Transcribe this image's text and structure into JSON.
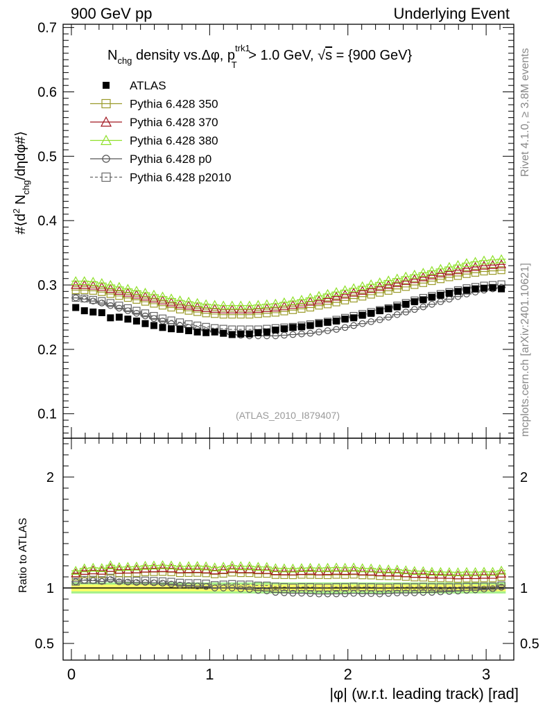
{
  "header": {
    "left": "900 GeV pp",
    "right": "Underlying Event"
  },
  "side_labels": {
    "rivet": "Rivet 4.1.0, ≥ 3.8M events",
    "mcplots": "mcplots.cern.ch [arXiv:2401.10621]"
  },
  "colors": {
    "ATLAS": "#000000",
    "p350": "#9a9a28",
    "p370": "#a0141e",
    "p380": "#8ee028",
    "p0": "#555555",
    "p2010": "#666666",
    "band_inner": "#ffff66",
    "band_outer": "#a8f08c"
  },
  "chart_data": {
    "type": "scatter",
    "title": "N_chg density vs.Δφ, p_T^trk1 > 1.0 GeV, √s = {900 GeV}",
    "title_parts": {
      "n": "N",
      "n_sub": "chg",
      "mid": " density vs.Δφ, p",
      "p_sup": "trk1",
      "p_sub": "T",
      "tail": " > 1.0 GeV, ",
      "sqrt": "√",
      "s": "s",
      "end": " = {900 GeV}"
    },
    "ylabel_parts": {
      "a": "#⟨d",
      "a_sup": "2",
      "b": " N",
      "b_sub": "chg",
      "c": "/dηdφ#⟩"
    },
    "ratio_ylabel": "Ratio to ATLAS",
    "xlabel": "|φ| (w.r.t. leading track) [rad]",
    "watermark": "(ATLAS_2010_I879407)",
    "xlim": [
      -0.06,
      3.2
    ],
    "ylim": [
      0.062,
      0.705
    ],
    "ratio_ylim": [
      0.35,
      2.35
    ],
    "xticks": [
      "0",
      "1",
      "2",
      "3"
    ],
    "yticks": [
      "0.1",
      "0.2",
      "0.3",
      "0.4",
      "0.5",
      "0.6",
      "0.7"
    ],
    "ratio_yticks": [
      "0.5",
      "1",
      "2"
    ],
    "x": [
      0.0314,
      0.0942,
      0.1571,
      0.2199,
      0.2827,
      0.3456,
      0.4084,
      0.4712,
      0.5341,
      0.5969,
      0.6597,
      0.7226,
      0.7854,
      0.8482,
      0.9111,
      0.9739,
      1.0367,
      1.0996,
      1.1624,
      1.2252,
      1.2881,
      1.3509,
      1.4137,
      1.4765,
      1.5394,
      1.6022,
      1.665,
      1.7279,
      1.7907,
      1.8535,
      1.9164,
      1.9792,
      2.042,
      2.1049,
      2.1677,
      2.2305,
      2.2934,
      2.3562,
      2.419,
      2.4819,
      2.5447,
      2.6075,
      2.6704,
      2.7332,
      2.796,
      2.8588,
      2.9217,
      2.9845,
      3.0473,
      3.1102
    ],
    "legend": [
      {
        "key": "ATLAS",
        "label": "ATLAS",
        "marker": "square-filled",
        "line": "none"
      },
      {
        "key": "p350",
        "label": "Pythia 6.428 350",
        "marker": "square-open",
        "line": "solid"
      },
      {
        "key": "p370",
        "label": "Pythia 6.428 370",
        "marker": "triangle-open",
        "line": "solid"
      },
      {
        "key": "p380",
        "label": "Pythia 6.428 380",
        "marker": "triangle-open",
        "line": "solid"
      },
      {
        "key": "p0",
        "label": "Pythia 6.428 p0",
        "marker": "circle-open",
        "line": "solid"
      },
      {
        "key": "p2010",
        "label": "Pythia 6.428 p2010",
        "marker": "square-open",
        "line": "dashed"
      }
    ],
    "series": [
      {
        "key": "ATLAS",
        "name": "ATLAS",
        "values": [
          0.265,
          0.26,
          0.258,
          0.257,
          0.249,
          0.25,
          0.247,
          0.244,
          0.24,
          0.237,
          0.234,
          0.232,
          0.231,
          0.229,
          0.227,
          0.226,
          0.227,
          0.225,
          0.223,
          0.224,
          0.224,
          0.226,
          0.227,
          0.23,
          0.232,
          0.234,
          0.235,
          0.237,
          0.24,
          0.242,
          0.244,
          0.247,
          0.249,
          0.253,
          0.256,
          0.26,
          0.263,
          0.266,
          0.27,
          0.274,
          0.277,
          0.281,
          0.284,
          0.287,
          0.29,
          0.292,
          0.294,
          0.295,
          0.296,
          0.294
        ]
      },
      {
        "key": "p350",
        "name": "Pythia 6.428 350",
        "values": [
          0.292,
          0.292,
          0.291,
          0.289,
          0.286,
          0.283,
          0.28,
          0.277,
          0.274,
          0.271,
          0.268,
          0.265,
          0.262,
          0.26,
          0.258,
          0.256,
          0.255,
          0.254,
          0.254,
          0.254,
          0.254,
          0.255,
          0.256,
          0.257,
          0.259,
          0.261,
          0.263,
          0.265,
          0.268,
          0.27,
          0.273,
          0.276,
          0.279,
          0.282,
          0.285,
          0.288,
          0.291,
          0.294,
          0.297,
          0.3,
          0.303,
          0.306,
          0.309,
          0.312,
          0.314,
          0.317,
          0.319,
          0.321,
          0.322,
          0.323
        ]
      },
      {
        "key": "p370",
        "name": "Pythia 6.428 370",
        "values": [
          0.3,
          0.3,
          0.299,
          0.297,
          0.294,
          0.291,
          0.288,
          0.285,
          0.282,
          0.279,
          0.276,
          0.273,
          0.27,
          0.268,
          0.266,
          0.264,
          0.263,
          0.262,
          0.262,
          0.262,
          0.262,
          0.263,
          0.264,
          0.265,
          0.267,
          0.269,
          0.271,
          0.274,
          0.276,
          0.279,
          0.282,
          0.285,
          0.288,
          0.291,
          0.294,
          0.297,
          0.3,
          0.303,
          0.306,
          0.309,
          0.312,
          0.315,
          0.318,
          0.321,
          0.323,
          0.326,
          0.328,
          0.33,
          0.331,
          0.332
        ]
      },
      {
        "key": "p380",
        "name": "Pythia 6.428 380",
        "values": [
          0.306,
          0.306,
          0.305,
          0.303,
          0.3,
          0.297,
          0.294,
          0.291,
          0.288,
          0.285,
          0.282,
          0.279,
          0.276,
          0.274,
          0.272,
          0.27,
          0.269,
          0.268,
          0.268,
          0.268,
          0.268,
          0.269,
          0.27,
          0.271,
          0.273,
          0.275,
          0.277,
          0.28,
          0.283,
          0.286,
          0.289,
          0.292,
          0.295,
          0.298,
          0.301,
          0.304,
          0.307,
          0.31,
          0.313,
          0.316,
          0.319,
          0.322,
          0.325,
          0.328,
          0.331,
          0.334,
          0.336,
          0.338,
          0.339,
          0.34
        ]
      },
      {
        "key": "p0",
        "name": "Pythia 6.428 p0",
        "values": [
          0.28,
          0.278,
          0.275,
          0.272,
          0.268,
          0.264,
          0.26,
          0.256,
          0.252,
          0.248,
          0.244,
          0.24,
          0.237,
          0.234,
          0.231,
          0.229,
          0.227,
          0.225,
          0.223,
          0.222,
          0.221,
          0.221,
          0.221,
          0.221,
          0.222,
          0.223,
          0.224,
          0.225,
          0.227,
          0.229,
          0.231,
          0.234,
          0.237,
          0.24,
          0.243,
          0.246,
          0.25,
          0.254,
          0.258,
          0.262,
          0.266,
          0.27,
          0.274,
          0.278,
          0.282,
          0.286,
          0.289,
          0.292,
          0.294,
          0.296
        ]
      },
      {
        "key": "p2010",
        "name": "Pythia 6.428 p2010",
        "values": [
          0.28,
          0.279,
          0.277,
          0.275,
          0.272,
          0.268,
          0.264,
          0.26,
          0.256,
          0.252,
          0.248,
          0.245,
          0.242,
          0.239,
          0.237,
          0.235,
          0.233,
          0.232,
          0.231,
          0.231,
          0.231,
          0.231,
          0.232,
          0.233,
          0.234,
          0.235,
          0.237,
          0.239,
          0.241,
          0.243,
          0.246,
          0.249,
          0.252,
          0.255,
          0.258,
          0.261,
          0.264,
          0.268,
          0.272,
          0.276,
          0.28,
          0.283,
          0.286,
          0.289,
          0.292,
          0.295,
          0.297,
          0.299,
          0.3,
          0.301
        ]
      }
    ]
  }
}
